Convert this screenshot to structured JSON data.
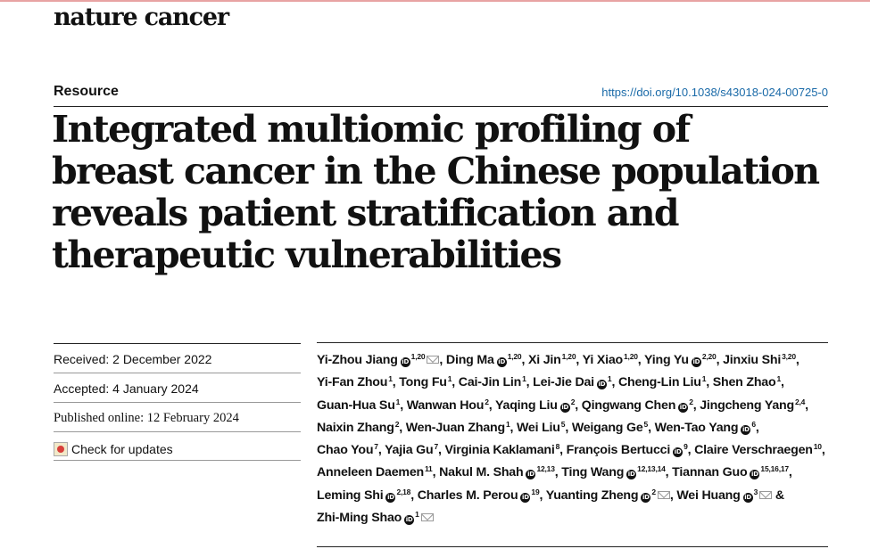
{
  "journal": "nature cancer",
  "section": "Resource",
  "doi": "https://doi.org/10.1038/s43018-024-00725-0",
  "title": "Integrated multiomic profiling of breast cancer in the Chinese population reveals patient stratification and therapeutic vulnerabilities",
  "dates": {
    "received": "Received: 2 December 2022",
    "accepted": "Accepted: 4 January 2024",
    "published": "Published online: 12 February 2024",
    "check_updates": "Check for updates"
  },
  "authors": [
    {
      "name": "Yi-Zhou Jiang",
      "orcid": true,
      "aff": "1,20",
      "mail": true,
      "sep": ","
    },
    {
      "name": "Ding Ma",
      "orcid": true,
      "aff": "1,20",
      "sep": ","
    },
    {
      "name": "Xi Jin",
      "aff": "1,20",
      "sep": ","
    },
    {
      "name": "Yi Xiao",
      "aff": "1,20",
      "sep": ","
    },
    {
      "name": "Ying Yu",
      "orcid": true,
      "aff": "2,20",
      "sep": ","
    },
    {
      "name": "Jinxiu Shi",
      "aff": "3,20",
      "sep": ","
    },
    {
      "name": "Yi-Fan Zhou",
      "aff": "1",
      "sep": ","
    },
    {
      "name": "Tong Fu",
      "aff": "1",
      "sep": ","
    },
    {
      "name": "Cai-Jin Lin",
      "aff": "1",
      "sep": ","
    },
    {
      "name": "Lei-Jie Dai",
      "orcid": true,
      "aff": "1",
      "sep": ","
    },
    {
      "name": "Cheng-Lin Liu",
      "aff": "1",
      "sep": ","
    },
    {
      "name": "Shen Zhao",
      "aff": "1",
      "sep": ","
    },
    {
      "name": "Guan-Hua Su",
      "aff": "1",
      "sep": ","
    },
    {
      "name": "Wanwan Hou",
      "aff": "2",
      "sep": ","
    },
    {
      "name": "Yaqing Liu",
      "orcid": true,
      "aff": "2",
      "sep": ","
    },
    {
      "name": "Qingwang Chen",
      "orcid": true,
      "aff": "2",
      "sep": ","
    },
    {
      "name": "Jingcheng Yang",
      "aff": "2,4",
      "sep": ","
    },
    {
      "name": "Naixin Zhang",
      "aff": "2",
      "sep": ","
    },
    {
      "name": "Wen-Juan Zhang",
      "aff": "1",
      "sep": ","
    },
    {
      "name": "Wei Liu",
      "aff": "5",
      "sep": ","
    },
    {
      "name": "Weigang Ge",
      "aff": "5",
      "sep": ","
    },
    {
      "name": "Wen-Tao Yang",
      "orcid": true,
      "aff": "6",
      "sep": ","
    },
    {
      "name": "Chao You",
      "aff": "7",
      "sep": ","
    },
    {
      "name": "Yajia Gu",
      "aff": "7",
      "sep": ","
    },
    {
      "name": "Virginia Kaklamani",
      "aff": "8",
      "sep": ","
    },
    {
      "name": "François Bertucci",
      "orcid": true,
      "aff": "9",
      "sep": ","
    },
    {
      "name": "Claire Verschraegen",
      "aff": "10",
      "sep": ","
    },
    {
      "name": "Anneleen Daemen",
      "aff": "11",
      "sep": ","
    },
    {
      "name": "Nakul M. Shah",
      "orcid": true,
      "aff": "12,13",
      "sep": ","
    },
    {
      "name": "Ting Wang",
      "orcid": true,
      "aff": "12,13,14",
      "sep": ","
    },
    {
      "name": "Tiannan Guo",
      "orcid": true,
      "aff": "15,16,17",
      "sep": ","
    },
    {
      "name": "Leming Shi",
      "orcid": true,
      "aff": "2,18",
      "sep": ","
    },
    {
      "name": "Charles M. Perou",
      "orcid": true,
      "aff": "19",
      "sep": ","
    },
    {
      "name": "Yuanting Zheng",
      "orcid": true,
      "aff": "2",
      "mail": true,
      "sep": ","
    },
    {
      "name": "Wei Huang",
      "orcid": true,
      "aff": "3",
      "mail": true,
      "sep": " &"
    },
    {
      "name": "Zhi-Ming Shao",
      "orcid": true,
      "aff": "1",
      "mail": true,
      "sep": ""
    }
  ]
}
